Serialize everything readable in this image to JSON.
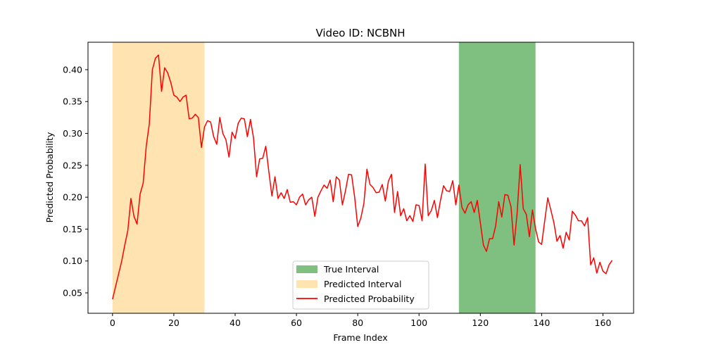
{
  "chart_data": {
    "type": "line",
    "title": "Video ID: NCBNH",
    "xlabel": "Frame Index",
    "ylabel": "Predicted Probability",
    "xlim": [
      -8,
      170
    ],
    "ylim": [
      0.018,
      0.443
    ],
    "xticks": [
      "0",
      "20",
      "40",
      "60",
      "80",
      "100",
      "120",
      "140",
      "160"
    ],
    "yticks": [
      "0.05",
      "0.10",
      "0.15",
      "0.20",
      "0.25",
      "0.30",
      "0.35",
      "0.40"
    ],
    "grid": false,
    "legend_position": "lower center",
    "true_interval": {
      "label": "True Interval",
      "start": 113,
      "end": 138,
      "color": "#008000"
    },
    "predicted_interval": {
      "label": "Predicted Interval",
      "start": 0,
      "end": 30,
      "color": "#ffa500"
    },
    "series": [
      {
        "name": "Predicted Probability",
        "color": "#ff0000",
        "x_start": 0,
        "values": [
          0.04,
          0.06,
          0.08,
          0.1,
          0.125,
          0.148,
          0.198,
          0.17,
          0.158,
          0.205,
          0.222,
          0.28,
          0.315,
          0.4,
          0.418,
          0.423,
          0.366,
          0.403,
          0.395,
          0.38,
          0.36,
          0.357,
          0.35,
          0.357,
          0.36,
          0.323,
          0.324,
          0.33,
          0.325,
          0.278,
          0.31,
          0.32,
          0.318,
          0.295,
          0.283,
          0.325,
          0.3,
          0.29,
          0.263,
          0.302,
          0.292,
          0.316,
          0.324,
          0.323,
          0.295,
          0.322,
          0.293,
          0.232,
          0.26,
          0.261,
          0.28,
          0.24,
          0.202,
          0.232,
          0.198,
          0.207,
          0.198,
          0.212,
          0.192,
          0.193,
          0.188,
          0.2,
          0.205,
          0.188,
          0.196,
          0.2,
          0.17,
          0.2,
          0.21,
          0.219,
          0.214,
          0.227,
          0.193,
          0.232,
          0.227,
          0.188,
          0.21,
          0.236,
          0.235,
          0.2,
          0.154,
          0.167,
          0.19,
          0.244,
          0.22,
          0.215,
          0.207,
          0.208,
          0.22,
          0.194,
          0.225,
          0.236,
          0.176,
          0.209,
          0.171,
          0.182,
          0.163,
          0.171,
          0.162,
          0.188,
          0.187,
          0.163,
          0.252,
          0.171,
          0.179,
          0.195,
          0.168,
          0.195,
          0.218,
          0.21,
          0.209,
          0.226,
          0.188,
          0.219,
          0.184,
          0.175,
          0.188,
          0.193,
          0.176,
          0.195,
          0.16,
          0.125,
          0.115,
          0.135,
          0.135,
          0.155,
          0.193,
          0.169,
          0.204,
          0.203,
          0.185,
          0.125,
          0.175,
          0.251,
          0.182,
          0.173,
          0.138,
          0.18,
          0.151,
          0.13,
          0.126,
          0.163,
          0.199,
          0.18,
          0.16,
          0.131,
          0.14,
          0.12,
          0.145,
          0.133,
          0.178,
          0.172,
          0.163,
          0.163,
          0.155,
          0.168,
          0.094,
          0.105,
          0.081,
          0.098,
          0.084,
          0.08,
          0.094,
          0.101
        ]
      }
    ]
  }
}
